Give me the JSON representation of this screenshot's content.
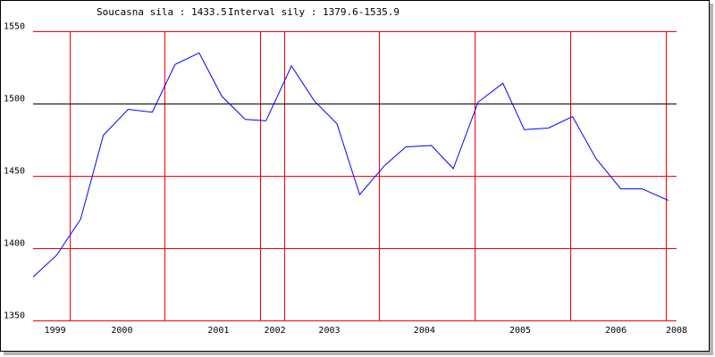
{
  "chart_data": {
    "type": "line",
    "header": {
      "current_label": "Soucasna sila : 1433.5",
      "interval_label": "Interval sily : 1379.6-1535.9"
    },
    "ylim": [
      1350,
      1550
    ],
    "y_ticks": [
      "1550",
      "1500",
      "1450",
      "1400",
      "1350"
    ],
    "y_tick_values": [
      1550,
      1500,
      1450,
      1400,
      1350
    ],
    "xlim": [
      1998.66,
      2008.0
    ],
    "x_tick_labels": [
      {
        "label": "1999",
        "x": 1998.98
      },
      {
        "label": "2000",
        "x": 1999.95
      },
      {
        "label": "2001",
        "x": 2001.35
      },
      {
        "label": "2002",
        "x": 2002.17
      },
      {
        "label": "2003",
        "x": 2002.96
      },
      {
        "label": "2004",
        "x": 2004.34
      },
      {
        "label": "2005",
        "x": 2005.73
      },
      {
        "label": "2006",
        "x": 2007.12
      },
      {
        "label": "2008",
        "x": 2008.0
      }
    ],
    "vertical_gridlines_x": [
      1999.19,
      2000.57,
      2001.96,
      2002.3,
      2003.68,
      2005.07,
      2006.46,
      2007.85
    ],
    "reference_line_y": 1500,
    "grid": true,
    "colors": {
      "line": "#0000ff",
      "grid": "#ff0000",
      "reference": "#000000"
    },
    "series": [
      {
        "x": [
          1998.66,
          1999.0,
          1999.35,
          1999.68,
          2000.04,
          2000.39,
          2000.72,
          2001.07,
          2001.4,
          2001.74,
          2002.04,
          2002.41,
          2002.74,
          2003.07,
          2003.4,
          2003.76,
          2004.07,
          2004.44,
          2004.76,
          2005.12,
          2005.48,
          2005.79,
          2006.14,
          2006.49,
          2006.83,
          2007.19,
          2007.5,
          2007.88
        ],
        "y": [
          1380,
          1395,
          1420,
          1478,
          1496,
          1494,
          1527,
          1535,
          1505,
          1489,
          1488,
          1526,
          1502,
          1486,
          1437,
          1457,
          1470,
          1471,
          1455,
          1501,
          1514,
          1482,
          1483,
          1491,
          1462,
          1441,
          1441,
          1433
        ]
      }
    ]
  }
}
